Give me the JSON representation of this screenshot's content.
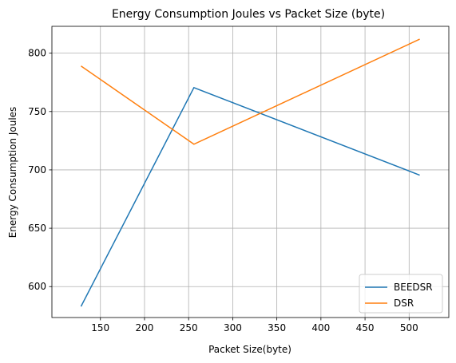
{
  "chart_data": {
    "type": "line",
    "title": "Energy Consumption Joules vs Packet Size (byte)",
    "xlabel": "Packet Size(byte)",
    "ylabel": "Energy Consumption Joules",
    "xlim": [
      95,
      545
    ],
    "ylim": [
      573.5,
      823
    ],
    "xticks": [
      150,
      200,
      250,
      300,
      350,
      400,
      450,
      500
    ],
    "yticks": [
      600,
      650,
      700,
      750,
      800
    ],
    "grid": true,
    "legend_position": "lower-right",
    "series": [
      {
        "name": "BEEDSR",
        "color": "#1f77b4",
        "x": [
          128,
          256,
          512
        ],
        "y": [
          583,
          770.5,
          695.5
        ]
      },
      {
        "name": "DSR",
        "color": "#ff7f0e",
        "x": [
          128,
          256,
          512
        ],
        "y": [
          789,
          722,
          812
        ]
      }
    ]
  }
}
